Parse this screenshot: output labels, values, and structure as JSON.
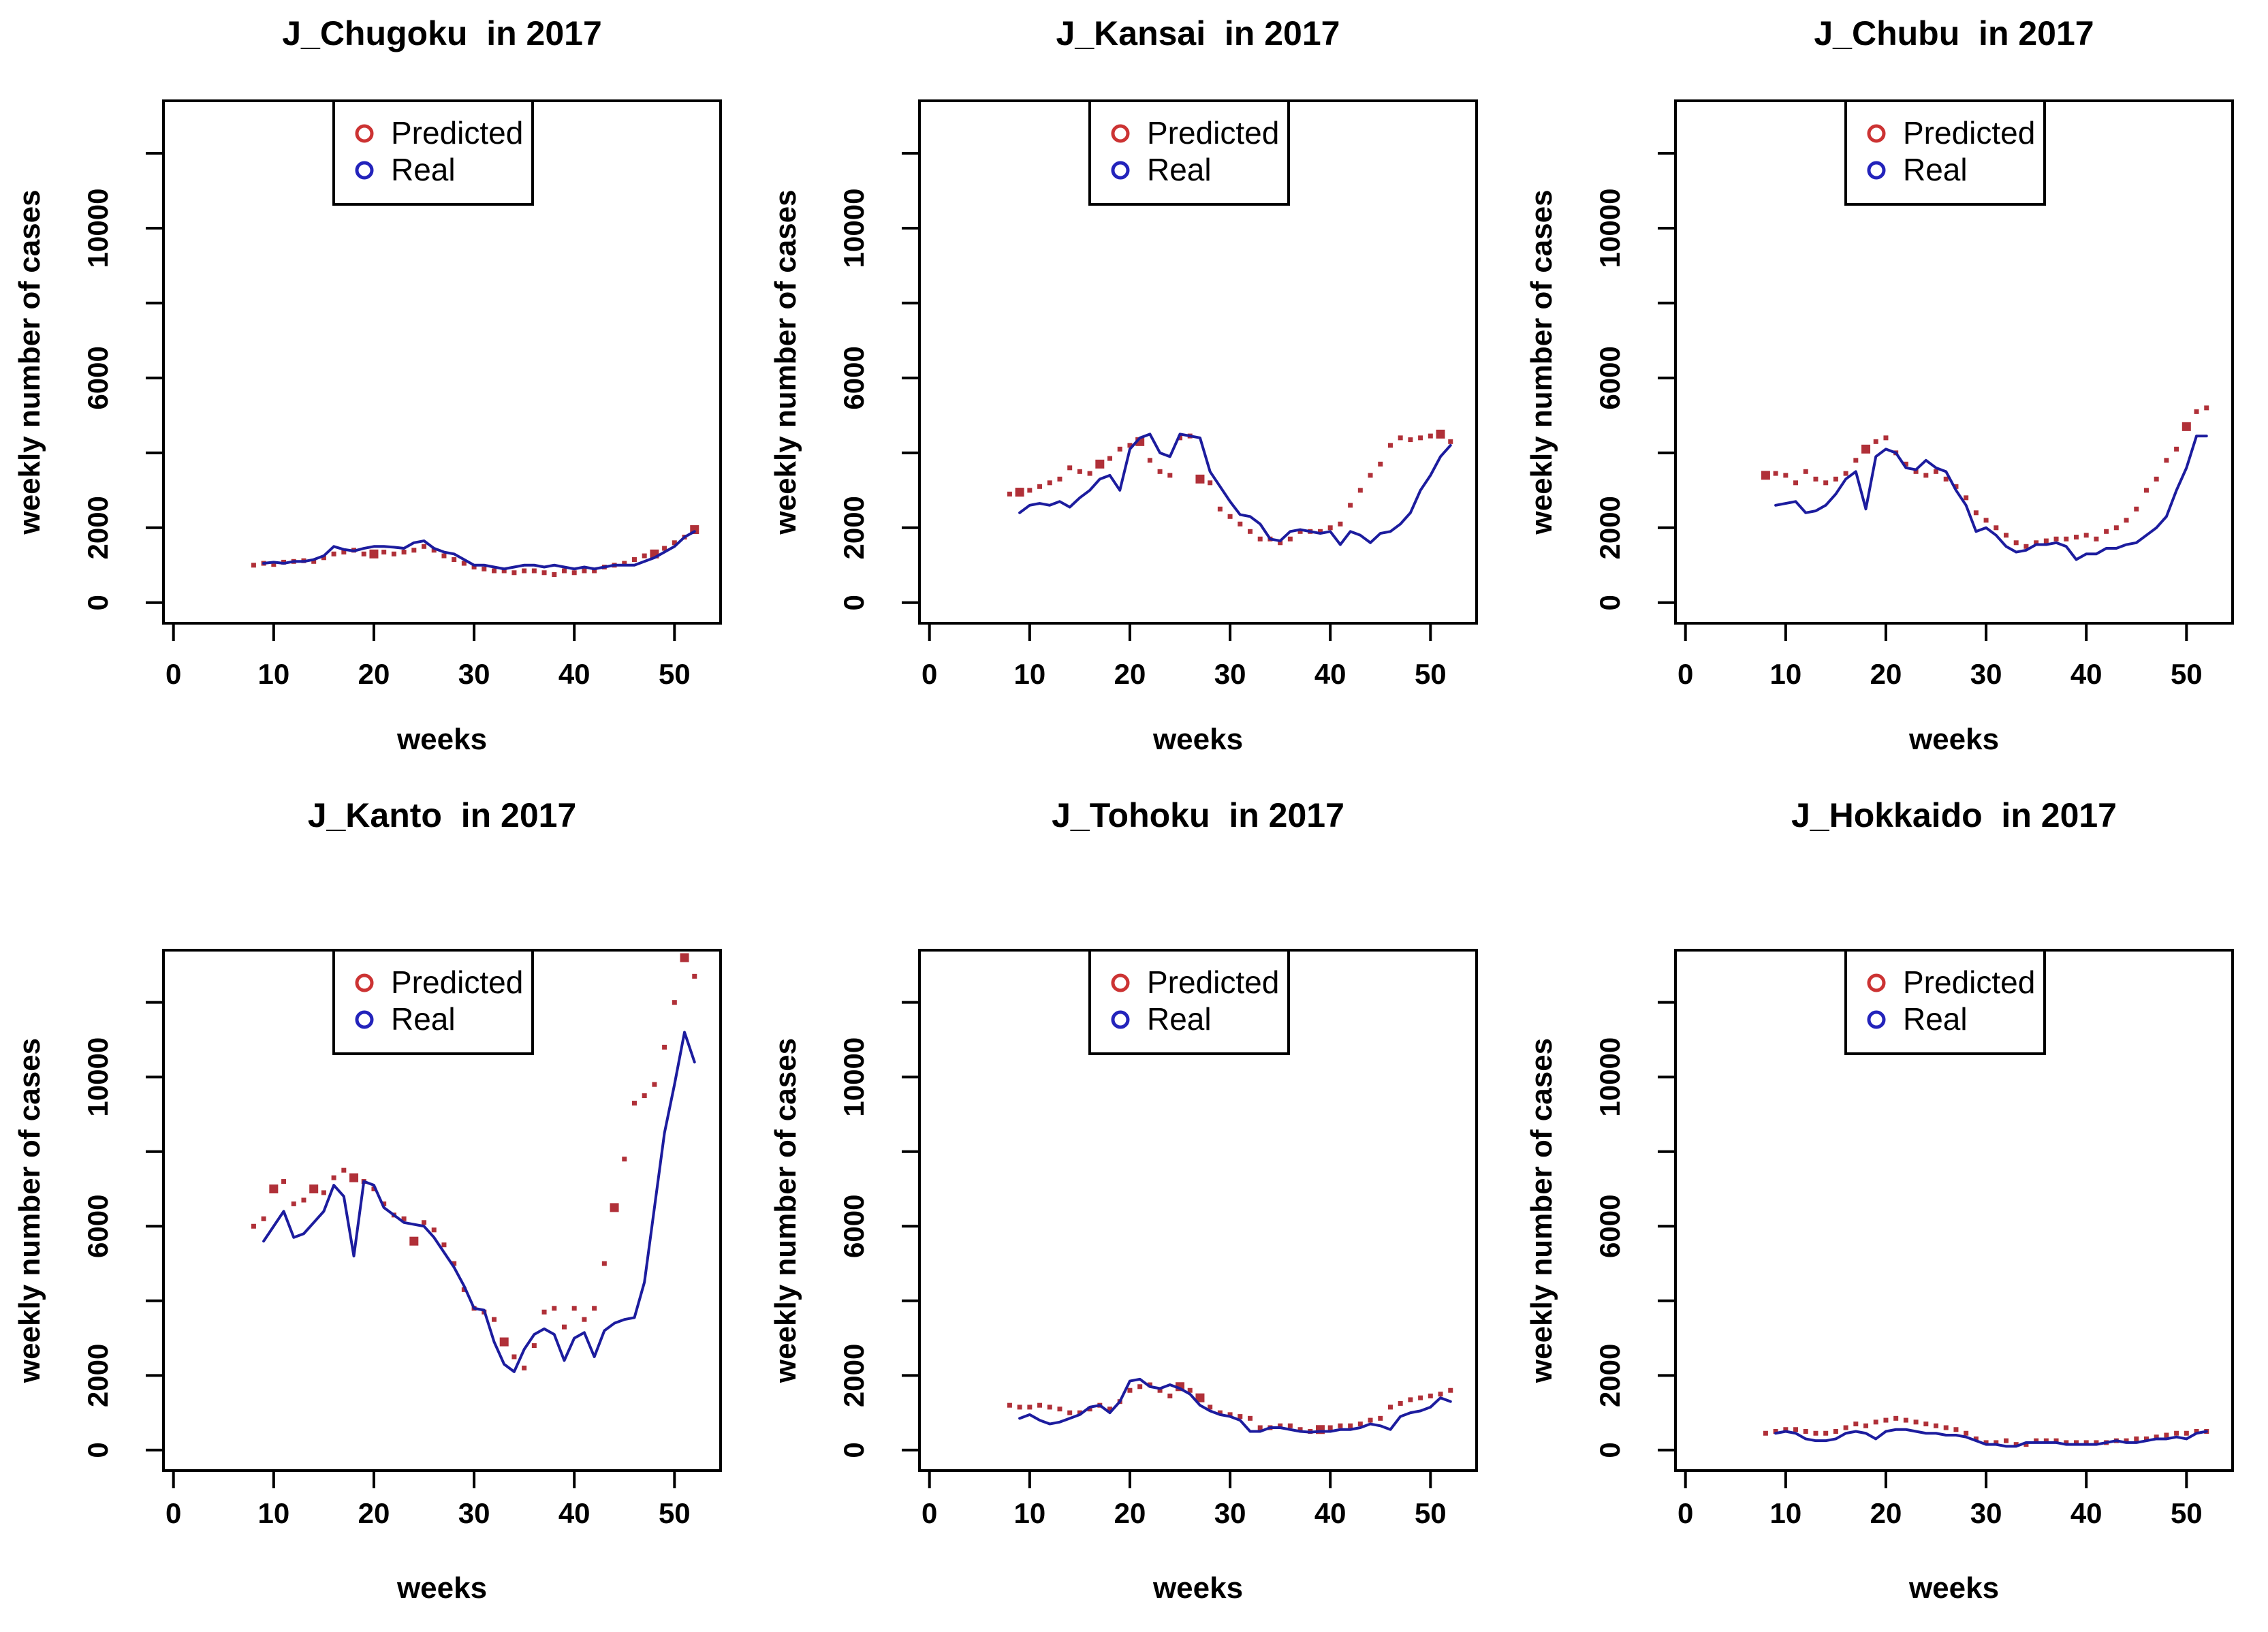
{
  "figure": {
    "background": "#ffffff",
    "axis_color": "#000000",
    "text_color": "#000000",
    "predicted_color": "#b03038",
    "predicted_legend_color": "#cc3333",
    "real_color": "#1c1c9e",
    "real_legend_color": "#2323bb",
    "legend": {
      "predicted_label": "Predicted",
      "real_label": "Real"
    }
  },
  "chart_data": [
    {
      "type": "line",
      "title": "J_Chugoku  in 2017",
      "xlabel": "weeks",
      "ylabel": "weekly number of cases",
      "xlim": [
        -1,
        54.6
      ],
      "ylim": [
        -550,
        13400
      ],
      "xticks": [
        0,
        10,
        20,
        30,
        40,
        50
      ],
      "yticks_labeled": [
        0,
        2000,
        6000,
        10000
      ],
      "yticks_unlabeled": [
        4000,
        8000,
        12000
      ],
      "legend_entries": [
        "Predicted",
        "Real"
      ],
      "series": [
        {
          "name": "Predicted",
          "style": "points",
          "week_start": 8,
          "values": [
            1000,
            1050,
            1020,
            1080,
            1100,
            1120,
            1100,
            1200,
            1300,
            1350,
            1400,
            1300,
            1300,
            1350,
            1300,
            1350,
            1400,
            1500,
            1400,
            1250,
            1150,
            1050,
            950,
            900,
            850,
            850,
            800,
            850,
            850,
            800,
            750,
            850,
            800,
            850,
            850,
            950,
            1000,
            1050,
            1150,
            1250,
            1300,
            1450,
            1600,
            1750,
            1950
          ],
          "emphasis_weeks": [
            20,
            48,
            52
          ]
        },
        {
          "name": "Real",
          "style": "line",
          "week_start": 9,
          "values": [
            1050,
            1080,
            1050,
            1100,
            1100,
            1150,
            1250,
            1500,
            1420,
            1380,
            1450,
            1500,
            1500,
            1480,
            1450,
            1600,
            1650,
            1450,
            1350,
            1300,
            1150,
            1000,
            1000,
            950,
            900,
            950,
            1000,
            1000,
            950,
            1000,
            950,
            900,
            950,
            900,
            950,
            1000,
            1000,
            1000,
            1100,
            1200,
            1350,
            1500,
            1750,
            1900
          ]
        }
      ]
    },
    {
      "type": "line",
      "title": "J_Kansai  in 2017",
      "xlabel": "weeks",
      "ylabel": "weekly number of cases",
      "xlim": [
        -1,
        54.6
      ],
      "ylim": [
        -550,
        13400
      ],
      "xticks": [
        0,
        10,
        20,
        30,
        40,
        50
      ],
      "yticks_labeled": [
        0,
        2000,
        6000,
        10000
      ],
      "yticks_unlabeled": [
        4000,
        8000,
        12000
      ],
      "legend_entries": [
        "Predicted",
        "Real"
      ],
      "series": [
        {
          "name": "Predicted",
          "style": "points",
          "week_start": 8,
          "values": [
            2900,
            2950,
            3000,
            3100,
            3200,
            3300,
            3600,
            3500,
            3450,
            3700,
            3850,
            4100,
            4200,
            4300,
            3800,
            3500,
            3400,
            4400,
            4450,
            3300,
            3200,
            2500,
            2300,
            2100,
            1900,
            1700,
            1700,
            1600,
            1700,
            1900,
            1900,
            1900,
            2000,
            2100,
            2600,
            3000,
            3400,
            3700,
            4200,
            4400,
            4350,
            4400,
            4450,
            4500,
            4300
          ],
          "emphasis_weeks": [
            9,
            17,
            21,
            27,
            51
          ]
        },
        {
          "name": "Real",
          "style": "line",
          "week_start": 9,
          "values": [
            2400,
            2600,
            2650,
            2600,
            2700,
            2550,
            2800,
            3000,
            3300,
            3400,
            3000,
            4100,
            4400,
            4500,
            4000,
            3900,
            4500,
            4450,
            4400,
            3500,
            3100,
            2700,
            2350,
            2300,
            2100,
            1700,
            1650,
            1900,
            1950,
            1900,
            1850,
            1900,
            1550,
            1900,
            1800,
            1600,
            1850,
            1900,
            2100,
            2400,
            3000,
            3400,
            3900,
            4200
          ]
        }
      ]
    },
    {
      "type": "line",
      "title": "J_Chubu  in 2017",
      "xlabel": "weeks",
      "ylabel": "weekly number of cases",
      "xlim": [
        -1,
        54.6
      ],
      "ylim": [
        -550,
        13400
      ],
      "xticks": [
        0,
        10,
        20,
        30,
        40,
        50
      ],
      "yticks_labeled": [
        0,
        2000,
        6000,
        10000
      ],
      "yticks_unlabeled": [
        4000,
        8000,
        12000
      ],
      "legend_entries": [
        "Predicted",
        "Real"
      ],
      "series": [
        {
          "name": "Predicted",
          "style": "points",
          "week_start": 8,
          "values": [
            3400,
            3450,
            3400,
            3200,
            3500,
            3300,
            3200,
            3300,
            3450,
            3800,
            4100,
            4300,
            4400,
            4000,
            3700,
            3500,
            3400,
            3500,
            3300,
            3100,
            2800,
            2400,
            2200,
            2000,
            1800,
            1600,
            1500,
            1600,
            1650,
            1700,
            1700,
            1750,
            1800,
            1700,
            1900,
            2000,
            2200,
            2500,
            3000,
            3300,
            3800,
            4100,
            4700,
            5100,
            5200
          ],
          "emphasis_weeks": [
            8,
            18,
            50
          ]
        },
        {
          "name": "Real",
          "style": "line",
          "week_start": 9,
          "values": [
            2600,
            2650,
            2700,
            2400,
            2450,
            2600,
            2900,
            3300,
            3500,
            2500,
            3900,
            4100,
            4000,
            3600,
            3550,
            3800,
            3600,
            3500,
            3000,
            2600,
            1900,
            2000,
            1800,
            1500,
            1350,
            1400,
            1550,
            1550,
            1600,
            1500,
            1150,
            1300,
            1300,
            1450,
            1450,
            1550,
            1600,
            1800,
            2000,
            2300,
            3000,
            3600,
            4450,
            4450
          ]
        }
      ]
    },
    {
      "type": "line",
      "title": "J_Kanto  in 2017",
      "xlabel": "weeks",
      "ylabel": "weekly number of cases",
      "xlim": [
        -1,
        54.6
      ],
      "ylim": [
        -550,
        13400
      ],
      "xticks": [
        0,
        10,
        20,
        30,
        40,
        50
      ],
      "yticks_labeled": [
        0,
        2000,
        6000,
        10000
      ],
      "yticks_unlabeled": [
        4000,
        8000,
        12000
      ],
      "legend_entries": [
        "Predicted",
        "Real"
      ],
      "series": [
        {
          "name": "Predicted",
          "style": "points",
          "week_start": 8,
          "values": [
            6000,
            6200,
            7000,
            7200,
            6600,
            6700,
            7000,
            6900,
            7300,
            7500,
            7300,
            7200,
            7000,
            6600,
            6300,
            6200,
            5600,
            6100,
            5900,
            5500,
            5000,
            4300,
            3800,
            3700,
            3500,
            2900,
            2500,
            2200,
            2800,
            3700,
            3800,
            3300,
            3800,
            3500,
            3800,
            5000,
            6500,
            7800,
            9300,
            9500,
            9800,
            10800,
            12000,
            13200,
            12700
          ],
          "emphasis_weeks": [
            10,
            14,
            18,
            24,
            33,
            44,
            51
          ]
        },
        {
          "name": "Real",
          "style": "line",
          "week_start": 9,
          "values": [
            5600,
            6000,
            6400,
            5700,
            5800,
            6100,
            6400,
            7100,
            6800,
            5200,
            7200,
            7100,
            6500,
            6300,
            6100,
            6050,
            6000,
            5700,
            5300,
            4900,
            4400,
            3800,
            3750,
            2900,
            2300,
            2100,
            2700,
            3100,
            3250,
            3100,
            2400,
            3000,
            3150,
            2500,
            3200,
            3400,
            3500,
            3550,
            4500,
            6500,
            8500,
            9800,
            11200,
            10400
          ]
        }
      ]
    },
    {
      "type": "line",
      "title": "J_Tohoku  in 2017",
      "xlabel": "weeks",
      "ylabel": "weekly number of cases",
      "xlim": [
        -1,
        54.6
      ],
      "ylim": [
        -550,
        13400
      ],
      "xticks": [
        0,
        10,
        20,
        30,
        40,
        50
      ],
      "yticks_labeled": [
        0,
        2000,
        6000,
        10000
      ],
      "yticks_unlabeled": [
        4000,
        8000,
        12000
      ],
      "legend_entries": [
        "Predicted",
        "Real"
      ],
      "series": [
        {
          "name": "Predicted",
          "style": "points",
          "week_start": 8,
          "values": [
            1200,
            1150,
            1150,
            1200,
            1150,
            1100,
            1000,
            1000,
            1100,
            1200,
            1100,
            1300,
            1600,
            1700,
            1750,
            1600,
            1450,
            1700,
            1600,
            1400,
            1150,
            1000,
            950,
            900,
            850,
            600,
            600,
            650,
            650,
            550,
            500,
            550,
            600,
            650,
            650,
            700,
            800,
            850,
            1150,
            1250,
            1350,
            1400,
            1450,
            1500,
            1600
          ],
          "emphasis_weeks": [
            25,
            27,
            39
          ]
        },
        {
          "name": "Real",
          "style": "line",
          "week_start": 9,
          "values": [
            850,
            950,
            800,
            700,
            750,
            850,
            950,
            1150,
            1200,
            1000,
            1300,
            1850,
            1900,
            1700,
            1650,
            1750,
            1650,
            1500,
            1200,
            1050,
            950,
            900,
            800,
            500,
            500,
            600,
            600,
            550,
            500,
            480,
            500,
            500,
            550,
            550,
            600,
            700,
            650,
            550,
            900,
            1000,
            1050,
            1150,
            1400,
            1300
          ]
        }
      ]
    },
    {
      "type": "line",
      "title": "J_Hokkaido  in 2017",
      "xlabel": "weeks",
      "ylabel": "weekly number of cases",
      "xlim": [
        -1,
        54.6
      ],
      "ylim": [
        -550,
        13400
      ],
      "xticks": [
        0,
        10,
        20,
        30,
        40,
        50
      ],
      "yticks_labeled": [
        0,
        2000,
        6000,
        10000
      ],
      "yticks_unlabeled": [
        4000,
        8000,
        12000
      ],
      "legend_entries": [
        "Predicted",
        "Real"
      ],
      "series": [
        {
          "name": "Predicted",
          "style": "points",
          "week_start": 8,
          "values": [
            450,
            500,
            550,
            550,
            500,
            450,
            450,
            500,
            600,
            700,
            650,
            750,
            800,
            850,
            800,
            750,
            700,
            650,
            600,
            550,
            450,
            300,
            200,
            200,
            250,
            150,
            150,
            250,
            250,
            250,
            200,
            200,
            200,
            200,
            200,
            250,
            250,
            300,
            300,
            350,
            400,
            450,
            450,
            500,
            500
          ],
          "emphasis_weeks": []
        },
        {
          "name": "Real",
          "style": "line",
          "week_start": 9,
          "values": [
            450,
            500,
            450,
            300,
            250,
            250,
            300,
            450,
            500,
            450,
            300,
            500,
            550,
            550,
            500,
            450,
            450,
            400,
            400,
            350,
            250,
            150,
            150,
            100,
            100,
            200,
            200,
            200,
            200,
            150,
            150,
            150,
            150,
            200,
            250,
            200,
            200,
            250,
            300,
            300,
            350,
            300,
            450,
            500
          ]
        }
      ]
    }
  ]
}
